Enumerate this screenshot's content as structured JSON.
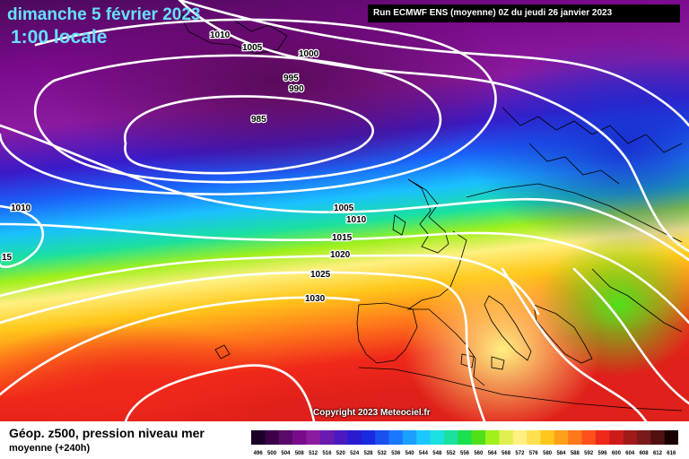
{
  "header": {
    "date": "dimanche 5 février 2023",
    "time": "1:00 locale",
    "run": "Run ECMWF ENS (moyenne) 0Z du jeudi 26 janvier 2023"
  },
  "map": {
    "copyright": "Copyright 2023 Meteociel.fr",
    "isobar_color": "#ffffff",
    "coastline_color": "#000000",
    "isobar_labels": [
      "1010",
      "1005",
      "1000",
      "995",
      "990",
      "985",
      "1010",
      "15",
      "1005",
      "1010",
      "1015",
      "1020",
      "1025",
      "1030"
    ]
  },
  "legend": {
    "title": "Géop. z500, pression niveau mer",
    "subtitle": "moyenne  (+240h)",
    "scale": [
      {
        "label": "496",
        "color": "#1a0026"
      },
      {
        "label": "500",
        "color": "#3a0048"
      },
      {
        "label": "504",
        "color": "#5a0a6a"
      },
      {
        "label": "508",
        "color": "#7a0a8c"
      },
      {
        "label": "512",
        "color": "#8c1aa0"
      },
      {
        "label": "516",
        "color": "#6a1ab0"
      },
      {
        "label": "520",
        "color": "#4a1ac0"
      },
      {
        "label": "524",
        "color": "#2a1ad0"
      },
      {
        "label": "528",
        "color": "#1a2ae0"
      },
      {
        "label": "532",
        "color": "#1a50f0"
      },
      {
        "label": "536",
        "color": "#1a78ff"
      },
      {
        "label": "540",
        "color": "#1aa0ff"
      },
      {
        "label": "544",
        "color": "#1ac8ff"
      },
      {
        "label": "548",
        "color": "#1ae0e0"
      },
      {
        "label": "552",
        "color": "#1ae0a0"
      },
      {
        "label": "556",
        "color": "#1ae050"
      },
      {
        "label": "560",
        "color": "#50e01a"
      },
      {
        "label": "564",
        "color": "#a0f01a"
      },
      {
        "label": "568",
        "color": "#e0f050"
      },
      {
        "label": "572",
        "color": "#fff080"
      },
      {
        "label": "576",
        "color": "#ffe050"
      },
      {
        "label": "580",
        "color": "#ffc81a"
      },
      {
        "label": "584",
        "color": "#ffa01a"
      },
      {
        "label": "588",
        "color": "#ff781a"
      },
      {
        "label": "592",
        "color": "#ff501a"
      },
      {
        "label": "596",
        "color": "#f0281a"
      },
      {
        "label": "600",
        "color": "#d01a1a"
      },
      {
        "label": "604",
        "color": "#a01a1a"
      },
      {
        "label": "608",
        "color": "#781a1a"
      },
      {
        "label": "612",
        "color": "#501010"
      },
      {
        "label": "616",
        "color": "#1a0000"
      }
    ]
  }
}
